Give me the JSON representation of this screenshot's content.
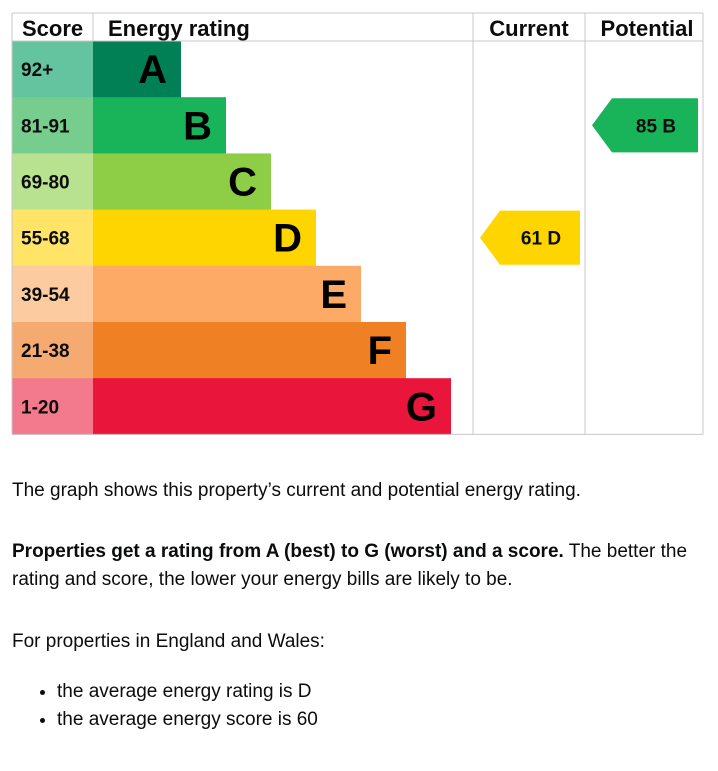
{
  "chart_data": {
    "type": "bar",
    "headers": {
      "score": "Score",
      "rating": "Energy rating",
      "current": "Current",
      "potential": "Potential"
    },
    "bands": [
      {
        "letter": "A",
        "range": "92+",
        "color": "#008054",
        "score_color": "#64c4a0"
      },
      {
        "letter": "B",
        "range": "81-91",
        "color": "#19b459",
        "score_color": "#76cd8d"
      },
      {
        "letter": "C",
        "range": "69-80",
        "color": "#8dce46",
        "score_color": "#b8e190"
      },
      {
        "letter": "D",
        "range": "55-68",
        "color": "#ffd500",
        "score_color": "#ffe467"
      },
      {
        "letter": "E",
        "range": "39-54",
        "color": "#fcaa65",
        "score_color": "#fdcba0"
      },
      {
        "letter": "F",
        "range": "21-38",
        "color": "#ef8023",
        "score_color": "#f5aa72"
      },
      {
        "letter": "G",
        "range": "1-20",
        "color": "#e9153b",
        "score_color": "#f27a8c"
      }
    ],
    "current": {
      "score": 61,
      "letter": "D",
      "label": "61  D",
      "color": "#ffd500"
    },
    "potential": {
      "score": 85,
      "letter": "B",
      "label": "85  B",
      "color": "#19b459"
    }
  },
  "text": {
    "intro": "The graph shows this property’s current and potential energy rating.",
    "rating_bold": "Properties get a rating from A (best) to G (worst) and a score.",
    "rating_rest": " The better the rating and score, the lower your energy bills are likely to be.",
    "region_intro": "For properties in England and Wales:",
    "bullets": [
      "the average energy rating is D",
      "the average energy score is 60"
    ]
  }
}
